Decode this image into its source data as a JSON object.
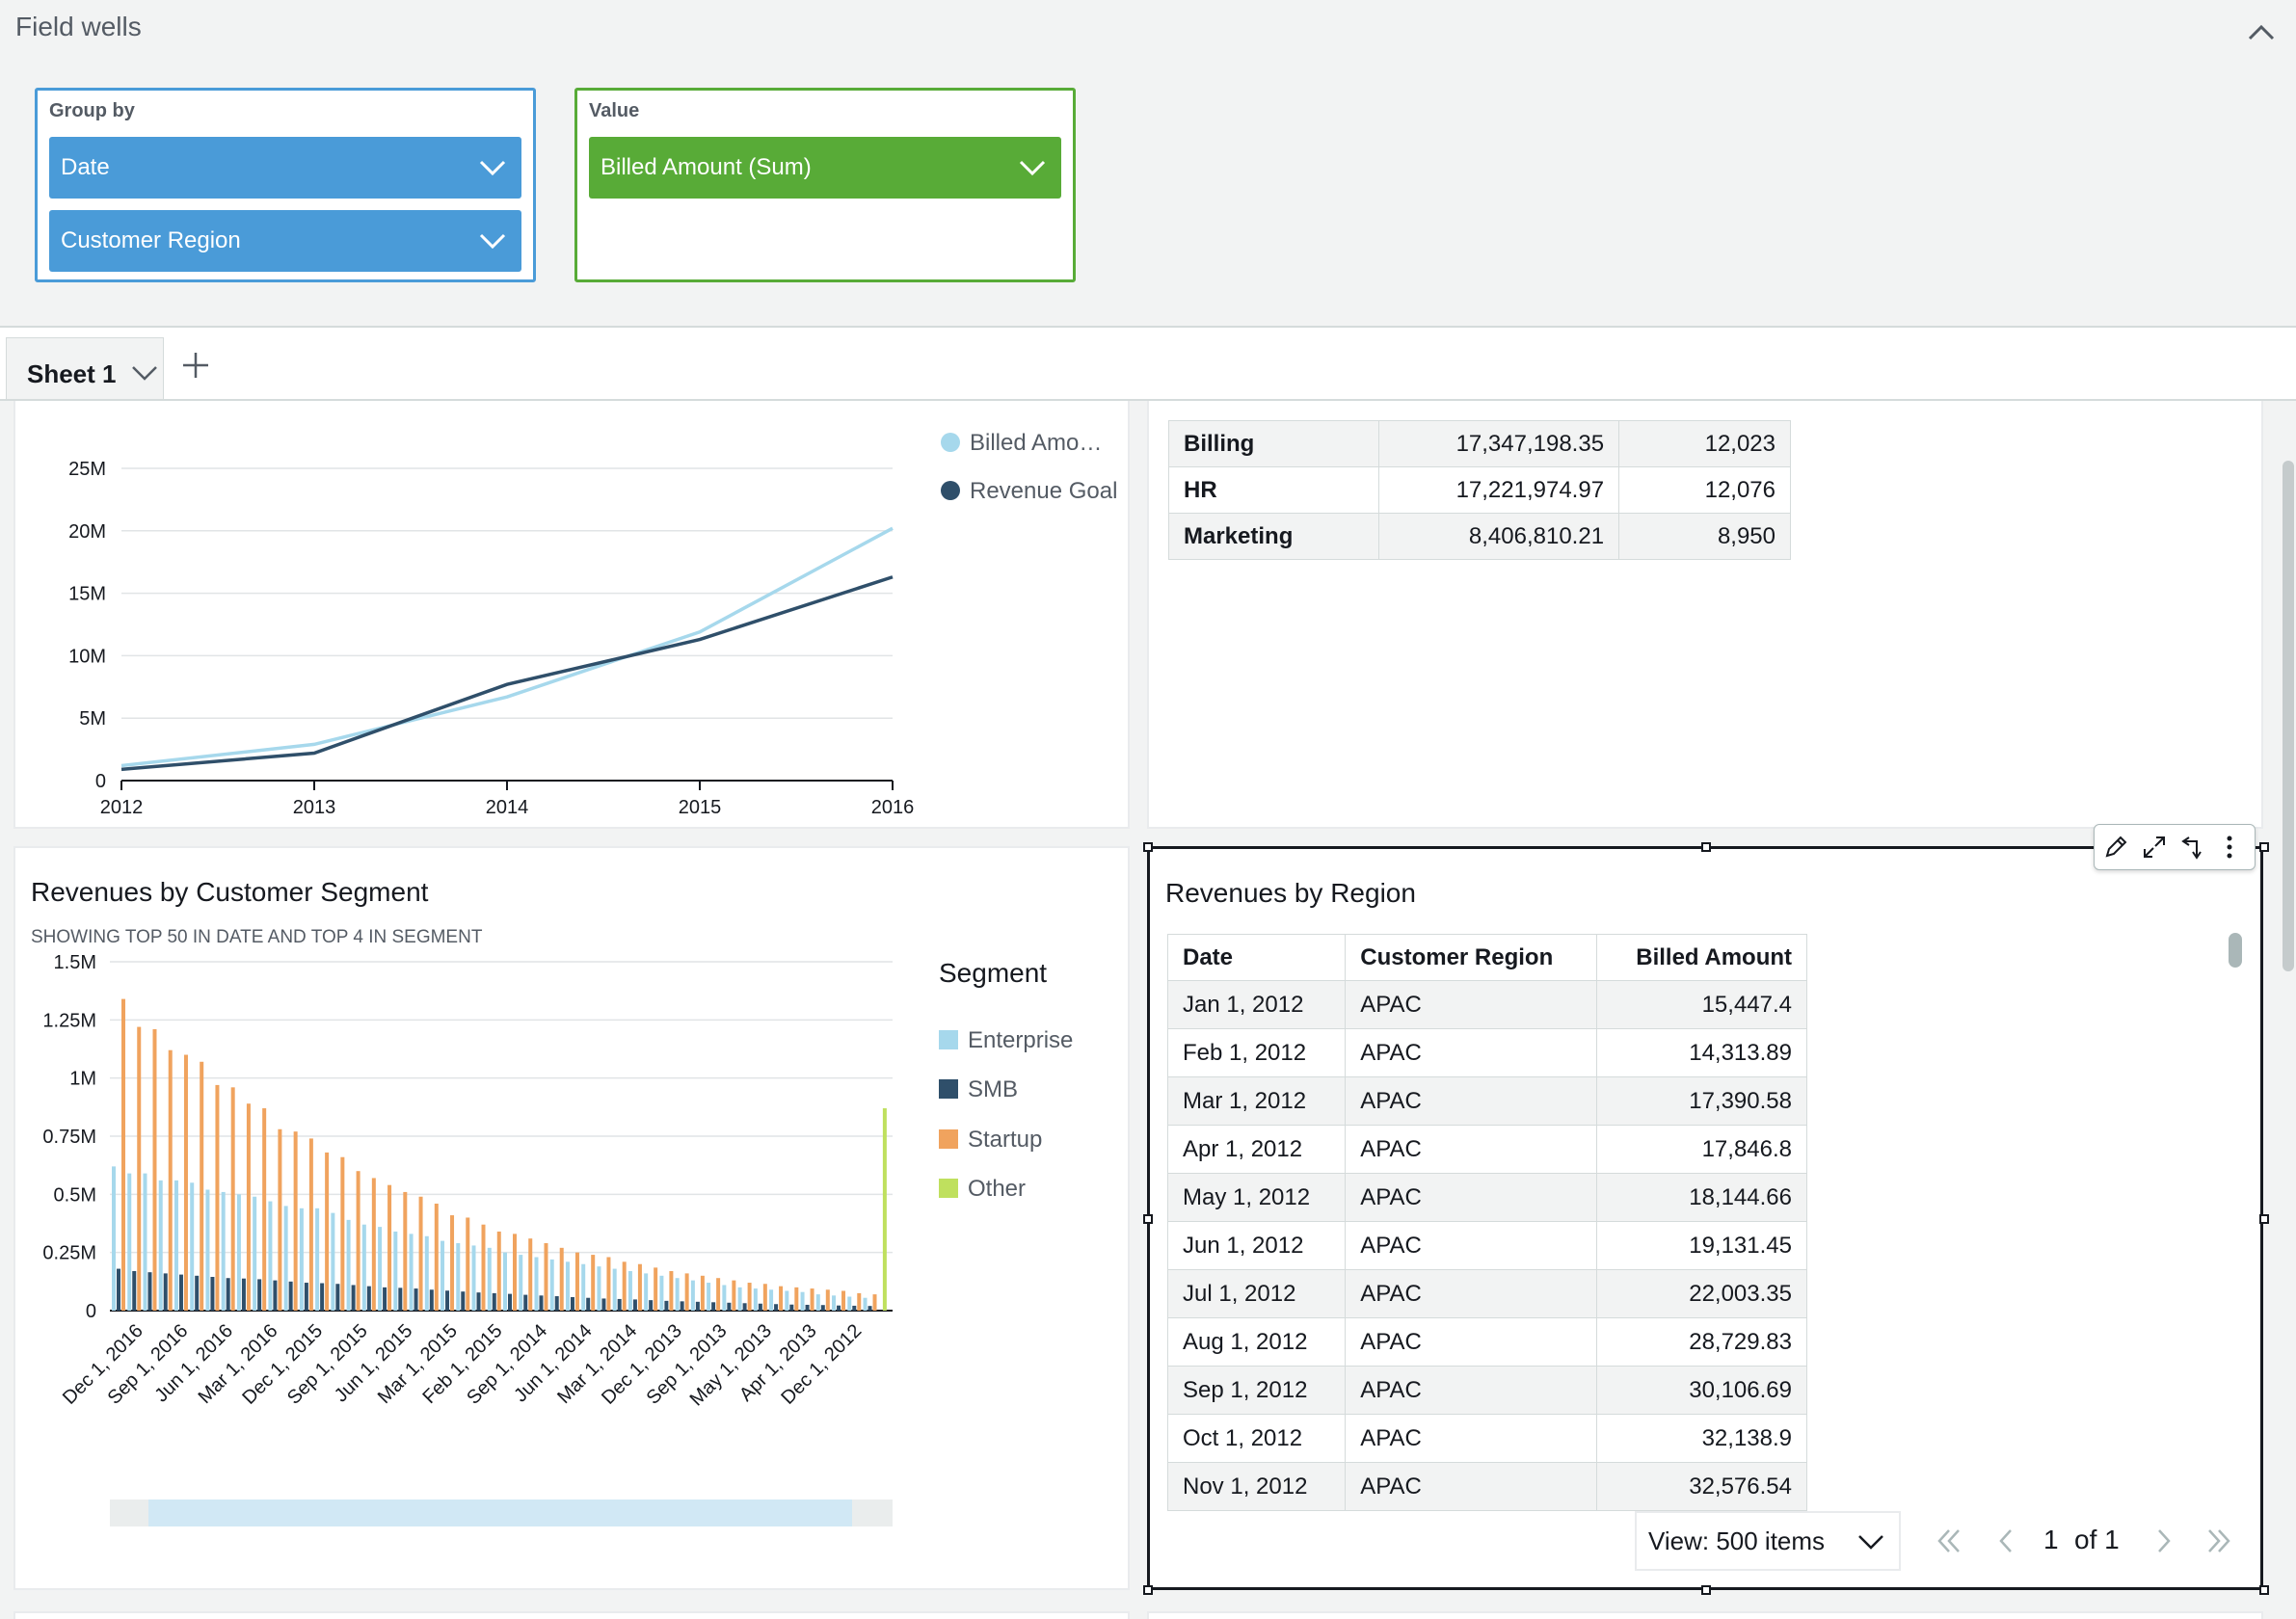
{
  "field_wells": {
    "title": "Field wells",
    "group_by": {
      "label": "Group by",
      "items": [
        "Date",
        "Customer Region"
      ]
    },
    "value": {
      "label": "Value",
      "items": [
        "Billed Amount (Sum)"
      ]
    }
  },
  "sheets": {
    "active": "Sheet 1"
  },
  "line_panel": {
    "legend": [
      "Billed Amo…",
      "Revenue Goal"
    ],
    "colors": {
      "billed": "#a6d8ec",
      "goal": "#2f4f6a"
    }
  },
  "dept_table": {
    "rows": [
      [
        "Billing",
        "17,347,198.35",
        "12,023"
      ],
      [
        "HR",
        "17,221,974.97",
        "12,076"
      ],
      [
        "Marketing",
        "8,406,810.21",
        "8,950"
      ]
    ]
  },
  "segment_panel": {
    "title": "Revenues by Customer Segment",
    "subtitle": "SHOWING TOP 50 IN DATE AND TOP 4 IN SEGMENT",
    "legend_title": "Segment",
    "legend": [
      "Enterprise",
      "SMB",
      "Startup",
      "Other"
    ],
    "colors": {
      "Enterprise": "#a6d8ec",
      "SMB": "#2f4f6a",
      "Startup": "#f0a35e",
      "Other": "#bfe05e"
    }
  },
  "region_panel": {
    "title": "Revenues by Region",
    "columns": [
      "Date",
      "Customer Region",
      "Billed Amount"
    ],
    "rows": [
      [
        "Jan 1, 2012",
        "APAC",
        "15,447.4"
      ],
      [
        "Feb 1, 2012",
        "APAC",
        "14,313.89"
      ],
      [
        "Mar 1, 2012",
        "APAC",
        "17,390.58"
      ],
      [
        "Apr 1, 2012",
        "APAC",
        "17,846.8"
      ],
      [
        "May 1, 2012",
        "APAC",
        "18,144.66"
      ],
      [
        "Jun 1, 2012",
        "APAC",
        "19,131.45"
      ],
      [
        "Jul 1, 2012",
        "APAC",
        "22,003.35"
      ],
      [
        "Aug 1, 2012",
        "APAC",
        "28,729.83"
      ],
      [
        "Sep 1, 2012",
        "APAC",
        "30,106.69"
      ],
      [
        "Oct 1, 2012",
        "APAC",
        "32,138.9"
      ],
      [
        "Nov 1, 2012",
        "APAC",
        "32,576.54"
      ]
    ],
    "pager": {
      "view": "View: 500 items",
      "page": "1",
      "of": "of 1"
    }
  },
  "chart_data": [
    {
      "type": "line",
      "x": [
        "2012",
        "2013",
        "2014",
        "2015",
        "2016"
      ],
      "ylim": [
        0,
        25000000
      ],
      "yticks": [
        "0",
        "5M",
        "10M",
        "15M",
        "20M",
        "25M"
      ],
      "series": [
        {
          "name": "Billed Amo…",
          "values": [
            1200000,
            2900000,
            6700000,
            11900000,
            20200000
          ]
        },
        {
          "name": "Revenue Goal",
          "values": [
            900000,
            2200000,
            7700000,
            11300000,
            16300000
          ]
        }
      ]
    },
    {
      "type": "bar",
      "ylim": [
        0,
        1500000
      ],
      "yticks": [
        "0",
        "0.25M",
        "0.5M",
        "0.75M",
        "1M",
        "1.25M",
        "1.5M"
      ],
      "xtick_labels": [
        "Dec 1, 2016",
        "Sep 1, 2016",
        "Jun 1, 2016",
        "Mar 1, 2016",
        "Dec 1, 2015",
        "Sep 1, 2015",
        "Jun 1, 2015",
        "Mar 1, 2015",
        "Feb 1, 2015",
        "Sep 1, 2014",
        "Jun 1, 2014",
        "Mar 1, 2014",
        "Dec 1, 2013",
        "Sep 1, 2013",
        "May 1, 2013",
        "Apr 1, 2013",
        "Dec 1, 2012"
      ],
      "series": [
        {
          "name": "Enterprise",
          "values": [
            620000,
            590000,
            590000,
            560000,
            560000,
            550000,
            520000,
            510000,
            500000,
            490000,
            470000,
            450000,
            440000,
            440000,
            420000,
            390000,
            370000,
            360000,
            340000,
            330000,
            320000,
            300000,
            290000,
            280000,
            270000,
            250000,
            240000,
            230000,
            220000,
            210000,
            200000,
            190000,
            180000,
            170000,
            160000,
            150000,
            140000,
            130000,
            120000,
            110000,
            100000,
            95000,
            90000,
            85000,
            80000,
            70000,
            65000,
            60000,
            55000,
            0
          ]
        },
        {
          "name": "SMB",
          "values": [
            180000,
            170000,
            165000,
            160000,
            155000,
            150000,
            145000,
            140000,
            138000,
            135000,
            130000,
            125000,
            120000,
            118000,
            115000,
            110000,
            105000,
            100000,
            98000,
            95000,
            90000,
            86000,
            82000,
            78000,
            75000,
            72000,
            68000,
            65000,
            62000,
            58000,
            55000,
            52000,
            50000,
            48000,
            45000,
            42000,
            40000,
            38000,
            36000,
            34000,
            32000,
            30000,
            28000,
            26000,
            25000,
            24000,
            22000,
            21000,
            20000,
            0
          ]
        },
        {
          "name": "Startup",
          "values": [
            1340000,
            1220000,
            1210000,
            1120000,
            1100000,
            1070000,
            970000,
            960000,
            890000,
            870000,
            780000,
            770000,
            740000,
            680000,
            660000,
            600000,
            570000,
            540000,
            510000,
            490000,
            460000,
            410000,
            400000,
            370000,
            340000,
            330000,
            310000,
            290000,
            270000,
            250000,
            240000,
            230000,
            210000,
            200000,
            185000,
            170000,
            160000,
            150000,
            140000,
            130000,
            120000,
            115000,
            105000,
            100000,
            95000,
            90000,
            85000,
            75000,
            70000,
            0
          ]
        },
        {
          "name": "Other",
          "values": [
            0,
            0,
            0,
            0,
            0,
            0,
            0,
            0,
            0,
            0,
            0,
            0,
            0,
            0,
            0,
            0,
            0,
            0,
            0,
            0,
            0,
            0,
            0,
            0,
            0,
            0,
            0,
            0,
            0,
            0,
            0,
            0,
            0,
            0,
            0,
            0,
            0,
            0,
            0,
            0,
            0,
            0,
            0,
            0,
            0,
            0,
            0,
            0,
            0,
            870000
          ]
        }
      ]
    }
  ]
}
